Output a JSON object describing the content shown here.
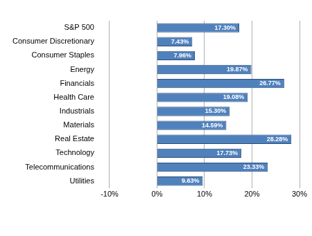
{
  "chart_data": {
    "type": "bar",
    "orientation": "horizontal",
    "categories": [
      "S&P 500",
      "Consumer Discretionary",
      "Consumer Staples",
      "Energy",
      "Financials",
      "Health Care",
      "Industrials",
      "Materials",
      "Real Estate",
      "Technology",
      "Telecommunications",
      "Utilities"
    ],
    "values": [
      17.3,
      7.43,
      7.96,
      19.87,
      26.77,
      19.08,
      15.3,
      14.59,
      28.28,
      17.73,
      23.33,
      9.63
    ],
    "value_labels": [
      "17.30%",
      "7.43%",
      "7.96%",
      "19.87%",
      "26.77%",
      "19.08%",
      "15.30%",
      "14.59%",
      "28.28%",
      "17.73%",
      "23.33%",
      "9.63%"
    ],
    "color": "#4f81bd",
    "xlim": [
      -10,
      30
    ],
    "xticks": [
      {
        "value": -10,
        "label": "-10%"
      },
      {
        "value": 0,
        "label": "0%"
      },
      {
        "value": 10,
        "label": "10%"
      },
      {
        "value": 20,
        "label": "20%"
      },
      {
        "value": 30,
        "label": "30%"
      }
    ],
    "grid": true,
    "data_labels": true
  }
}
